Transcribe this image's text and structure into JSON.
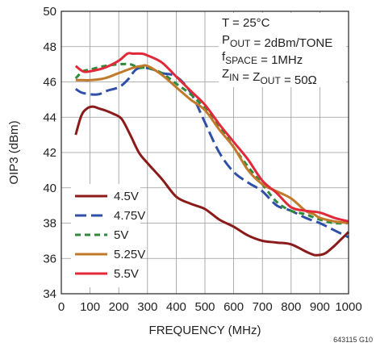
{
  "chart_data": {
    "type": "line",
    "title": "",
    "xlabel": "FREQUENCY (MHz)",
    "ylabel": "OIP3 (dBm)",
    "xlim": [
      0,
      1000
    ],
    "ylim": [
      34,
      50
    ],
    "xticks": [
      0,
      100,
      200,
      300,
      400,
      500,
      600,
      700,
      800,
      900,
      1000
    ],
    "yticks": [
      34,
      36,
      38,
      40,
      42,
      44,
      46,
      48,
      50
    ],
    "grid": true,
    "legend_position": "bottom-left",
    "conditions": [
      {
        "main": "T = 25°C",
        "sub": "",
        "rest": ""
      },
      {
        "main": "P",
        "sub": "OUT",
        "rest": " = 2dBm/TONE"
      },
      {
        "main": "f",
        "sub": "SPACE",
        "rest": " = 1MHz"
      },
      {
        "main": "Z",
        "sub": "IN",
        "rest": " = Z",
        "sub2": "OUT",
        "rest2": " = 50Ω"
      }
    ],
    "figure_id": "643115 G10",
    "series": [
      {
        "name": "4.5V",
        "color": "#8b1a1a",
        "dash": "solid",
        "x": [
          50,
          70,
          90,
          110,
          130,
          150,
          180,
          210,
          240,
          270,
          300,
          350,
          400,
          450,
          500,
          550,
          600,
          650,
          700,
          750,
          800,
          850,
          880,
          900,
          920,
          950,
          975,
          1000
        ],
        "y": [
          43.0,
          44.1,
          44.5,
          44.6,
          44.5,
          44.4,
          44.2,
          43.9,
          43.0,
          42.0,
          41.4,
          40.5,
          39.5,
          39.1,
          38.8,
          38.2,
          37.8,
          37.3,
          37.0,
          36.9,
          36.8,
          36.4,
          36.2,
          36.2,
          36.3,
          36.7,
          37.1,
          37.5
        ]
      },
      {
        "name": "4.75V",
        "color": "#2f4fa8",
        "dash": "long",
        "x": [
          50,
          70,
          100,
          130,
          160,
          200,
          230,
          260,
          290,
          320,
          350,
          400,
          450,
          500,
          550,
          600,
          650,
          700,
          750,
          800,
          850,
          900,
          950,
          1000
        ],
        "y": [
          45.6,
          45.4,
          45.3,
          45.3,
          45.5,
          45.7,
          46.1,
          46.7,
          46.8,
          46.7,
          46.5,
          46.3,
          45.4,
          43.7,
          42.0,
          40.9,
          40.3,
          39.8,
          39.0,
          38.7,
          38.3,
          38.0,
          37.6,
          37.2
        ]
      },
      {
        "name": "5V",
        "color": "#2e8b3a",
        "dash": "short",
        "x": [
          50,
          75,
          100,
          150,
          200,
          240,
          270,
          300,
          350,
          400,
          450,
          500,
          550,
          600,
          650,
          700,
          750,
          800,
          850,
          900,
          950,
          1000
        ],
        "y": [
          46.2,
          46.6,
          46.7,
          46.9,
          47.0,
          47.0,
          46.8,
          46.8,
          46.5,
          45.9,
          45.3,
          44.5,
          43.5,
          42.3,
          41.2,
          40.2,
          39.2,
          38.7,
          38.5,
          38.2,
          38.0,
          38.0
        ]
      },
      {
        "name": "5.25V",
        "color": "#c07a2a",
        "dash": "solid",
        "x": [
          50,
          75,
          100,
          150,
          200,
          250,
          280,
          300,
          350,
          400,
          450,
          500,
          550,
          600,
          650,
          700,
          750,
          800,
          850,
          880,
          900,
          950,
          1000
        ],
        "y": [
          46.1,
          46.1,
          46.1,
          46.2,
          46.5,
          46.8,
          46.9,
          46.9,
          46.4,
          45.7,
          45.0,
          44.4,
          43.3,
          42.3,
          41.0,
          40.2,
          39.8,
          39.4,
          38.7,
          38.5,
          38.3,
          38.1,
          38.0
        ]
      },
      {
        "name": "5.5V",
        "color": "#e02a3a",
        "dash": "solid",
        "x": [
          50,
          75,
          100,
          150,
          200,
          230,
          250,
          280,
          300,
          350,
          400,
          450,
          500,
          550,
          600,
          650,
          700,
          750,
          800,
          850,
          900,
          950,
          1000
        ],
        "y": [
          46.9,
          46.6,
          46.6,
          46.8,
          47.2,
          47.6,
          47.6,
          47.6,
          47.5,
          47.1,
          46.3,
          45.5,
          44.7,
          43.6,
          42.6,
          41.6,
          40.4,
          39.7,
          38.9,
          38.7,
          38.6,
          38.3,
          38.1
        ]
      }
    ]
  }
}
